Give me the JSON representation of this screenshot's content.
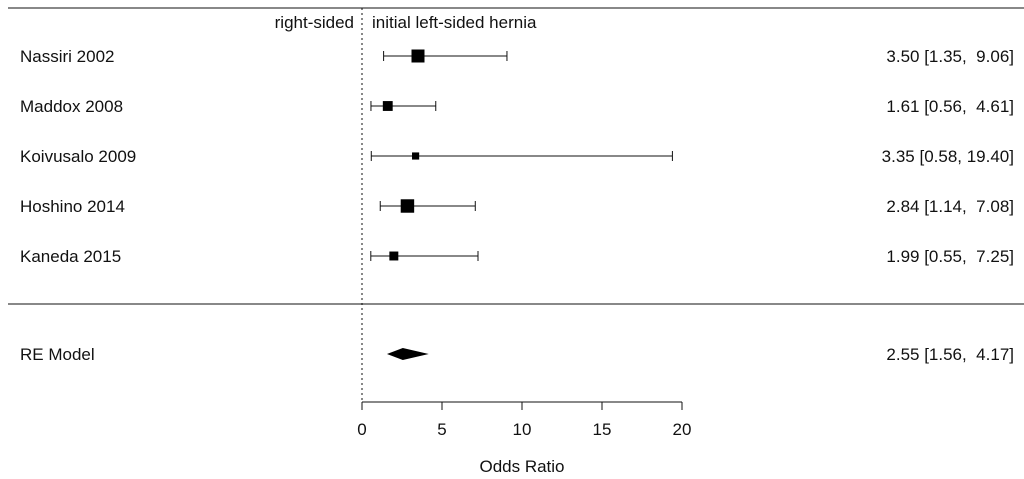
{
  "chart_data": {
    "type": "forest",
    "header_left": "right-sided",
    "header_right": "initial left-sided hernia",
    "xlabel": "Odds Ratio",
    "xlim": [
      0,
      20
    ],
    "xticks": [
      "0",
      "5",
      "10",
      "15",
      "20"
    ],
    "reference_line": 0,
    "studies": [
      {
        "label": "Nassiri 2002",
        "or": 3.5,
        "lower": 1.35,
        "upper": 9.06,
        "ci_text": "3.50 [1.35,  9.06]",
        "weight": 1.0
      },
      {
        "label": "Maddox 2008",
        "or": 1.61,
        "lower": 0.56,
        "upper": 4.61,
        "ci_text": "1.61 [0.56,  4.61]",
        "weight": 0.65
      },
      {
        "label": "Koivusalo 2009",
        "or": 3.35,
        "lower": 0.58,
        "upper": 19.4,
        "ci_text": "3.35 [0.58, 19.40]",
        "weight": 0.35
      },
      {
        "label": "Hoshino 2014",
        "or": 2.84,
        "lower": 1.14,
        "upper": 7.08,
        "ci_text": "2.84 [1.14,  7.08]",
        "weight": 1.05
      },
      {
        "label": "Kaneda 2015",
        "or": 1.99,
        "lower": 0.55,
        "upper": 7.25,
        "ci_text": "1.99 [0.55,  7.25]",
        "weight": 0.55
      }
    ],
    "summary": {
      "label": "RE Model",
      "or": 2.55,
      "lower": 1.56,
      "upper": 4.17,
      "ci_text": "2.55 [1.56,  4.17]"
    }
  }
}
